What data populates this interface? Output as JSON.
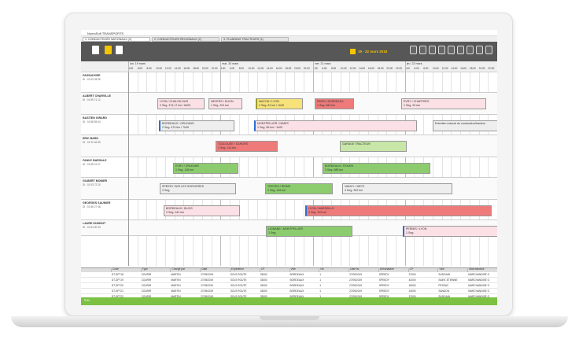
{
  "window_title": "NomoSoft TRANSPORTS",
  "tabs": [
    "1. CONDUCTEURS NATIONAUX (3)",
    "2. CONDUCTEURS REGIONAUX (2)",
    "3. PLANNING TRACTEURS (4)"
  ],
  "date_range": "19 - 22 mars 2018",
  "days": [
    "lun. 19 mars",
    "mar. 20 mars",
    "mer. 21 mars",
    "jeu. 22 mars"
  ],
  "hours": [
    "4:00",
    "6:00",
    "8:00",
    "10:00",
    "12:00",
    "14:00",
    "16:00",
    "18:00",
    "20:00",
    "22:00"
  ],
  "drivers": [
    {
      "name": "PASSADORE",
      "info": "DI : 01 83 28 96"
    },
    {
      "name": "ALBERT CHARVILLE",
      "info": "DI : 01 89 71 12"
    },
    {
      "name": "BASTIEN GIRARD",
      "info": "DI : 01 88 55 64"
    },
    {
      "name": "ERIC BARD",
      "info": "DI : 01 92 46 55"
    },
    {
      "name": "FANNY BARSALE",
      "info": "DI : 01 85 41 07"
    },
    {
      "name": "GILBERT MONIER",
      "info": "DI : 01 93 72 20"
    },
    {
      "name": "GEORGES SAUNIER",
      "info": "DI : 01 86 27 48"
    },
    {
      "name": "LAURE DUMONT",
      "info": "DI : 01 84 90 33"
    }
  ],
  "events": [
    {
      "title": "LYON / CHALON SUR",
      "detail": "2 Seg. 374,17 km / 6h00"
    },
    {
      "title": "NEVERS / DIJON",
      "detail": "1 Seg. 201 km"
    },
    {
      "title": "MACON / LYON",
      "detail": "2 Seg. 81 km / 1h30"
    },
    {
      "title": "PARIS / BORDEAUX",
      "detail": "1 Seg. 583 km"
    },
    {
      "title": "EVRY / CHARTRES",
      "detail": "1 Seg. 92 km"
    },
    {
      "title": "BORDEAUX / ORLEANS",
      "detail": "2 Seg. 474 km / 7h30"
    },
    {
      "title": "MONTPELLIER / NIMES",
      "detail": "1 Seg. 56 km / 1h00"
    },
    {
      "title": "Entretien manuel du conducteur/tracteur",
      "detail": ""
    },
    {
      "title": "TOULOUSE / CAHORS",
      "detail": "1 Seg. 114 km"
    },
    {
      "title": "GARAGE TRACTEUR",
      "detail": ""
    },
    {
      "title": "EVRY / ORLEANS",
      "detail": "1 Seg. 118 km"
    },
    {
      "title": "BORDEAUX / ROUEN",
      "detail": "3 Seg. 685 km"
    },
    {
      "title": "SPEEDY SUR LES SORCIERES",
      "detail": "2 Seg."
    },
    {
      "title": "TROYES / REIMS",
      "detail": "1 Seg. 126 km"
    },
    {
      "title": "NANCY / METZ",
      "detail": "4 Seg. 302 km"
    },
    {
      "title": "BORDEAUX / BLOIS",
      "detail": "2 Seg. 341 km"
    },
    {
      "title": "LYON / MARSEILLE",
      "detail": "2 Seg. 315 km"
    },
    {
      "title": "LIGNANE / MONTPELLIER",
      "detail": "1 Seg."
    },
    {
      "title": "PERMIS / LYON",
      "detail": "1 Seg."
    }
  ],
  "table": {
    "columns": [
      "Code",
      "Type",
      "Chargé par",
      "Date",
      "Expéditeur",
      "CP",
      "Ville",
      "Nb",
      "Date liv.",
      "Destinataire",
      "CP",
      "Ville",
      "Marchandise"
    ],
    "rows": [
      [
        "DT-GP718",
        "COURIR",
        "MARTIN",
        "27/05/2019",
        "SOLS ROUTE",
        "33000",
        "BORDEAUX",
        "1",
        "27/05/2019",
        "SPEEDY",
        "37000",
        "SUDGAIN",
        "MARCHANDISE G"
      ],
      [
        "DT-GP719",
        "COURIR",
        "MARTIN",
        "27/05/2019",
        "SOLS ROUTE",
        "33000",
        "BORDEAUX",
        "1",
        "27/05/2019",
        "SPEEDY",
        "42000",
        "SAINT-ETIENNE",
        "MARCHANDISE G"
      ],
      [
        "DT-GP720",
        "COURIR",
        "MARTIN",
        "27/05/2019",
        "SOLS ROUTE",
        "33000",
        "BORDEAUX",
        "1",
        "27/05/2019",
        "SPEEDY",
        "26000",
        "PESSAC",
        "MARCHANDISE G"
      ],
      [
        "DT-GP721",
        "COURIR",
        "MARTIN",
        "27/05/2019",
        "SOLS ROUTE",
        "33000",
        "BORDEAUX",
        "1",
        "27/05/2019",
        "SPEEDY",
        "24000",
        "SANDON",
        "MARCHANDISE G"
      ],
      [
        "DT-GP722",
        "COURIR",
        "MARTIN",
        "27/05/2019",
        "SOLS ROUTE",
        "33000",
        "BORDEAUX",
        "1",
        "27/05/2019",
        "SPEEDY",
        "37000",
        "SUDGAIN",
        "MARCHANDISE G"
      ],
      [
        "DT-GT753",
        "CAMION",
        "DUPONT",
        "27/05/2019",
        "USINE YCPLAT",
        "26000",
        "VALENCE",
        "1",
        "27/05/2019",
        "SOOL",
        "01700",
        "BEYNOST",
        "ALIMENTAIRE"
      ],
      [
        "DT-GT754",
        "CAMION",
        "DUPONT",
        "27/05/2019",
        "USINE YCPLAT",
        "26000",
        "VALENCE",
        "1",
        "27/05/2019",
        "CHANTEFOUR",
        "01700",
        "MIRIBEL",
        "ALIMENTAIRE"
      ],
      [
        "DT-GT755",
        "CAMION",
        "DUPONT",
        "27/05/2019",
        "USINE YCPLAT",
        "91000",
        "EVRY",
        "1",
        "27/05/2019",
        "ALDIMA",
        "45000",
        "ORLEANS",
        "ALIMENTAIRE"
      ],
      [
        "DT-GT756",
        "CAMION",
        "DUPONT",
        "27/05/2019",
        "USINE YCPLAT",
        "69000",
        "LYON",
        "1",
        "27/05/2019",
        "GIANT",
        "21200",
        "BEAUNE",
        "ALIMENTAIRE"
      ]
    ]
  },
  "status": "Prêt"
}
